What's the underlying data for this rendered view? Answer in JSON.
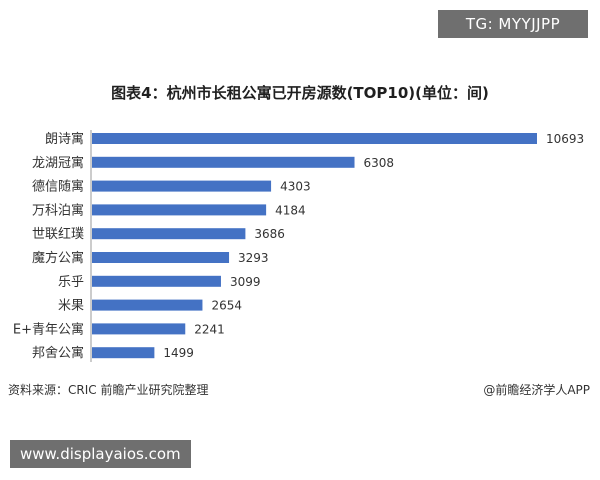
{
  "watermarks": {
    "telegram": "TG: MYYJJPP",
    "site": "www.displayaios.com"
  },
  "footer": {
    "source": "资料来源：CRIC 前瞻产业研究院整理",
    "brand": "@前瞻经济学人APP"
  },
  "colors": {
    "bar": "#4472c4",
    "text": "#333333"
  },
  "chart_data": {
    "type": "bar",
    "orientation": "horizontal",
    "title": "图表4：杭州市长租公寓已开房源数(TOP10)(单位：间)",
    "categories": [
      "朗诗寓",
      "龙湖冠寓",
      "德信随寓",
      "万科泊寓",
      "世联红璞",
      "魔方公寓",
      "乐乎",
      "米果",
      "E+青年公寓",
      "邦舍公寓"
    ],
    "values": [
      10693,
      6308,
      4303,
      4184,
      3686,
      3293,
      3099,
      2654,
      2241,
      1499
    ],
    "xlim": [
      0,
      10693
    ],
    "grid": false
  }
}
